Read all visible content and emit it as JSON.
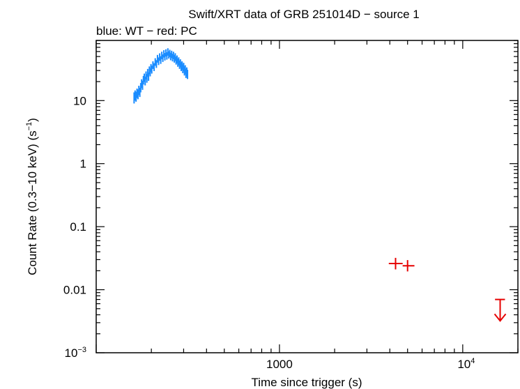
{
  "chart_data": {
    "type": "scatter",
    "title": "Swift/XRT data of GRB 251014D − source 1",
    "subtitle": "blue: WT − red: PC",
    "xlabel": "Time since trigger (s)",
    "ylabel_main": "Count Rate (0.3−10 keV) (s",
    "ylabel_sup": "−1",
    "ylabel_close": ")",
    "x_scale": "log",
    "y_scale": "log",
    "xlim": [
      100,
      20000
    ],
    "ylim": [
      0.001,
      90
    ],
    "grid": false,
    "x_ticks": [
      {
        "value": 1000,
        "label": "1000",
        "base": "",
        "sup": ""
      },
      {
        "value": 10000,
        "label": "",
        "base": "10",
        "sup": "4"
      }
    ],
    "y_ticks": [
      {
        "value": 10,
        "label": "10",
        "base": "",
        "sup": ""
      },
      {
        "value": 1,
        "label": "1",
        "base": "",
        "sup": ""
      },
      {
        "value": 0.1,
        "label": "0.1",
        "base": "",
        "sup": ""
      },
      {
        "value": 0.01,
        "label": "0.01",
        "base": "",
        "sup": ""
      },
      {
        "value": 0.001,
        "label": "",
        "base": "10",
        "sup": "−3"
      }
    ],
    "series": [
      {
        "mode": "WT",
        "color": "#1a8cff",
        "points": [
          [
            161,
            11.0,
            9.0,
            13.5
          ],
          [
            163,
            12.0,
            10.0,
            14.5
          ],
          [
            165,
            11.5,
            9.6,
            13.8
          ],
          [
            167,
            13.0,
            11.0,
            15.5
          ],
          [
            169,
            12.5,
            10.5,
            15.0
          ],
          [
            171,
            14.5,
            12.2,
            17.2
          ],
          [
            173,
            13.5,
            11.4,
            16.0
          ],
          [
            175,
            16.0,
            13.5,
            19.0
          ],
          [
            177,
            18.5,
            15.8,
            21.8
          ],
          [
            179,
            17.5,
            14.8,
            20.6
          ],
          [
            181,
            21.0,
            18.0,
            24.6
          ],
          [
            183,
            23.0,
            19.8,
            26.8
          ],
          [
            185,
            20.5,
            17.4,
            24.0
          ],
          [
            187,
            25.0,
            21.6,
            29.0
          ],
          [
            189,
            22.5,
            19.2,
            26.4
          ],
          [
            191,
            27.5,
            23.8,
            31.8
          ],
          [
            193,
            24.0,
            20.6,
            28.0
          ],
          [
            195,
            30.0,
            26.0,
            34.8
          ],
          [
            197,
            28.0,
            24.2,
            32.4
          ],
          [
            199,
            33.0,
            28.6,
            38.0
          ],
          [
            201,
            31.0,
            26.8,
            35.8
          ],
          [
            204,
            36.5,
            31.8,
            42.0
          ],
          [
            207,
            34.0,
            29.4,
            39.2
          ],
          [
            210,
            41.0,
            35.6,
            47.0
          ],
          [
            213,
            38.0,
            33.0,
            43.8
          ],
          [
            216,
            46.0,
            40.0,
            53.0
          ],
          [
            219,
            42.0,
            36.6,
            48.4
          ],
          [
            222,
            49.0,
            42.8,
            56.2
          ],
          [
            225,
            44.0,
            38.2,
            50.6
          ],
          [
            228,
            52.0,
            45.4,
            59.6
          ],
          [
            231,
            47.0,
            41.0,
            54.0
          ],
          [
            234,
            55.0,
            48.2,
            63.0
          ],
          [
            237,
            49.5,
            43.2,
            56.8
          ],
          [
            240,
            57.0,
            50.0,
            65.0
          ],
          [
            243,
            51.0,
            44.6,
            58.4
          ],
          [
            246,
            59.0,
            51.6,
            67.6
          ],
          [
            249,
            53.0,
            46.4,
            60.6
          ],
          [
            252,
            56.0,
            49.0,
            64.0
          ],
          [
            255,
            50.0,
            43.6,
            57.4
          ],
          [
            258,
            54.0,
            47.2,
            61.8
          ],
          [
            261,
            48.0,
            41.8,
            55.2
          ],
          [
            264,
            52.0,
            45.4,
            59.6
          ],
          [
            267,
            46.0,
            40.0,
            53.0
          ],
          [
            270,
            49.0,
            42.6,
            56.4
          ],
          [
            273,
            43.0,
            37.2,
            49.6
          ],
          [
            276,
            45.0,
            39.0,
            52.0
          ],
          [
            279,
            40.0,
            34.4,
            46.4
          ],
          [
            282,
            42.0,
            36.2,
            48.6
          ],
          [
            285,
            37.0,
            31.8,
            43.0
          ],
          [
            288,
            39.0,
            33.6,
            45.2
          ],
          [
            291,
            34.5,
            29.4,
            40.4
          ],
          [
            294,
            36.0,
            30.8,
            42.0
          ],
          [
            297,
            32.0,
            27.2,
            37.6
          ],
          [
            300,
            34.0,
            29.0,
            39.8
          ],
          [
            303,
            29.5,
            25.0,
            34.8
          ],
          [
            306,
            31.0,
            26.4,
            36.4
          ],
          [
            309,
            27.0,
            22.8,
            32.0
          ],
          [
            312,
            28.5,
            24.2,
            33.6
          ],
          [
            315,
            26.0,
            22.0,
            30.8
          ]
        ]
      },
      {
        "mode": "PC",
        "color": "#e60000",
        "points": [
          [
            4300,
            0.026,
            0.021,
            0.032,
            3950,
            4700
          ],
          [
            5000,
            0.024,
            0.0195,
            0.0295,
            4700,
            5450
          ]
        ]
      }
    ],
    "upper_limits": [
      {
        "mode": "PC",
        "color": "#e60000",
        "x": 16000,
        "y": 0.007,
        "xmin": 15000,
        "xmax": 17000,
        "arrow_to": 0.0032
      }
    ]
  }
}
